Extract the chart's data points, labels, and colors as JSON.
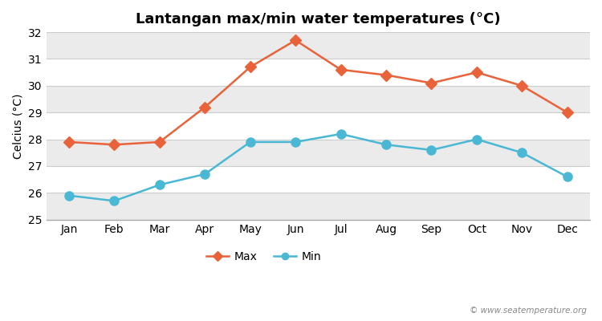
{
  "title": "Lantangan max/min water temperatures (°C)",
  "ylabel": "Celcius (°C)",
  "months": [
    "Jan",
    "Feb",
    "Mar",
    "Apr",
    "May",
    "Jun",
    "Jul",
    "Aug",
    "Sep",
    "Oct",
    "Nov",
    "Dec"
  ],
  "max_temps": [
    27.9,
    27.8,
    27.9,
    29.2,
    30.7,
    31.7,
    30.6,
    30.4,
    30.1,
    30.5,
    30.0,
    29.0
  ],
  "min_temps": [
    25.9,
    25.7,
    26.3,
    26.7,
    27.9,
    27.9,
    28.2,
    27.8,
    27.6,
    28.0,
    27.5,
    26.6
  ],
  "ylim": [
    25,
    32
  ],
  "yticks": [
    25,
    26,
    27,
    28,
    29,
    30,
    31,
    32
  ],
  "max_color": "#e8623a",
  "min_color": "#4ab8d4",
  "bg_color": "#ffffff",
  "band_color_light": "#ffffff",
  "band_color_dark": "#ebebeb",
  "grid_color": "#cccccc",
  "watermark": "© www.seatemperature.org",
  "max_marker": "D",
  "min_marker": "o",
  "linewidth": 1.8,
  "max_markersize": 7,
  "min_markersize": 8,
  "title_fontsize": 13,
  "axis_fontsize": 10,
  "legend_fontsize": 10
}
